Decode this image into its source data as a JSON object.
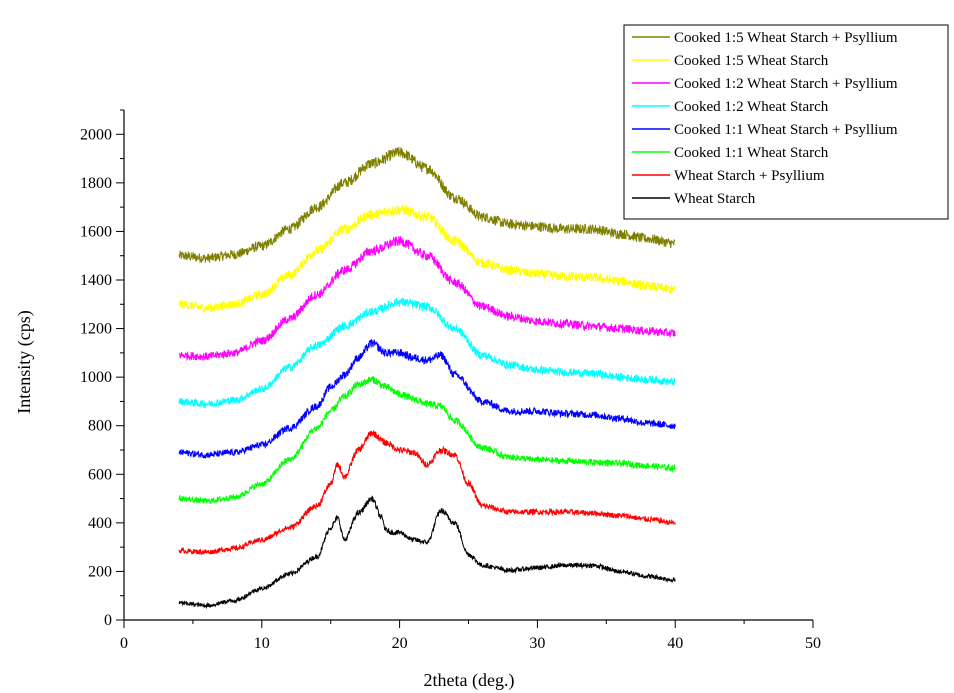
{
  "chart_data": {
    "type": "line",
    "title": "",
    "xlabel": "2theta (deg.)",
    "ylabel": "Intensity (cps)",
    "xlim": [
      0,
      50
    ],
    "ylim": [
      0,
      2100
    ],
    "x_ticks": [
      0,
      10,
      20,
      30,
      40,
      50
    ],
    "y_ticks": [
      0,
      200,
      400,
      600,
      800,
      1000,
      1200,
      1400,
      1600,
      1800,
      2000
    ],
    "grid": false,
    "legend_position": "top-right",
    "series": [
      {
        "name": "Cooked 1:5 Wheat Starch + Psyllium",
        "color": "#808000",
        "x": [
          4,
          6,
          8,
          10,
          12,
          14,
          16,
          18,
          20,
          22,
          24,
          26,
          28,
          30,
          32,
          34,
          36,
          38,
          40
        ],
        "y": [
          1500,
          1490,
          1505,
          1540,
          1610,
          1700,
          1800,
          1880,
          1925,
          1860,
          1740,
          1660,
          1630,
          1620,
          1610,
          1610,
          1590,
          1570,
          1550
        ]
      },
      {
        "name": "Cooked 1:5 Wheat Starch",
        "color": "#ffff00",
        "x": [
          4,
          6,
          8,
          10,
          12,
          14,
          16,
          18,
          20,
          22,
          24,
          26,
          28,
          30,
          32,
          34,
          36,
          38,
          40
        ],
        "y": [
          1300,
          1285,
          1300,
          1340,
          1420,
          1520,
          1610,
          1670,
          1690,
          1660,
          1560,
          1470,
          1440,
          1425,
          1415,
          1410,
          1395,
          1375,
          1360
        ]
      },
      {
        "name": "Cooked 1:2 Wheat Starch + Psyllium",
        "color": "#ff00ff",
        "x": [
          4,
          6,
          8,
          10,
          12,
          14,
          16,
          18,
          20,
          22,
          24,
          26,
          28,
          30,
          32,
          34,
          36,
          38,
          40
        ],
        "y": [
          1090,
          1085,
          1100,
          1150,
          1240,
          1340,
          1440,
          1520,
          1560,
          1500,
          1390,
          1290,
          1250,
          1230,
          1220,
          1210,
          1200,
          1190,
          1180
        ]
      },
      {
        "name": "Cooked 1:2 Wheat Starch",
        "color": "#00ffff",
        "x": [
          4,
          6,
          8,
          10,
          12,
          14,
          16,
          18,
          20,
          22,
          24,
          26,
          28,
          30,
          32,
          34,
          36,
          38,
          40
        ],
        "y": [
          900,
          890,
          905,
          950,
          1040,
          1130,
          1210,
          1270,
          1310,
          1290,
          1200,
          1090,
          1050,
          1030,
          1020,
          1015,
          1000,
          990,
          980
        ]
      },
      {
        "name": "Cooked 1:1 Wheat Starch + Psyllium",
        "color": "#0000ff",
        "x": [
          4,
          6,
          8,
          10,
          12,
          14,
          15,
          16,
          17,
          18,
          19,
          20,
          21,
          22,
          23,
          24,
          26,
          28,
          30,
          32,
          34,
          36,
          38,
          40
        ],
        "y": [
          690,
          680,
          690,
          720,
          790,
          880,
          960,
          1010,
          1080,
          1140,
          1100,
          1100,
          1080,
          1070,
          1090,
          1010,
          900,
          860,
          860,
          850,
          845,
          830,
          810,
          800
        ]
      },
      {
        "name": "Cooked 1:1 Wheat Starch",
        "color": "#00ff00",
        "x": [
          4,
          6,
          8,
          10,
          12,
          14,
          15,
          16,
          17,
          18,
          19,
          20,
          21,
          22,
          23,
          24,
          26,
          28,
          30,
          32,
          34,
          36,
          38,
          40
        ],
        "y": [
          500,
          490,
          505,
          560,
          660,
          790,
          860,
          920,
          970,
          990,
          960,
          930,
          910,
          890,
          880,
          820,
          710,
          670,
          660,
          655,
          650,
          645,
          635,
          625
        ]
      },
      {
        "name": "Wheat Starch + Psyllium",
        "color": "#ff0000",
        "x": [
          4,
          6,
          8,
          10,
          12,
          14,
          15,
          15.5,
          16,
          17,
          18,
          19,
          20,
          21,
          22,
          23,
          24,
          25,
          26,
          28,
          30,
          32,
          34,
          36,
          38,
          40
        ],
        "y": [
          285,
          280,
          295,
          330,
          380,
          470,
          560,
          640,
          590,
          700,
          770,
          730,
          700,
          690,
          640,
          700,
          680,
          560,
          470,
          445,
          445,
          445,
          440,
          430,
          415,
          400
        ]
      },
      {
        "name": "Wheat Starch",
        "color": "#000000",
        "x": [
          4,
          6,
          8,
          10,
          12,
          14,
          15,
          15.5,
          16,
          17,
          18,
          18.7,
          19,
          19.5,
          20,
          21,
          22,
          23,
          24,
          25,
          26,
          28,
          30,
          32,
          34,
          36,
          38,
          40
        ],
        "y": [
          70,
          60,
          80,
          130,
          190,
          260,
          380,
          420,
          330,
          440,
          500,
          420,
          370,
          360,
          360,
          330,
          320,
          450,
          400,
          270,
          225,
          205,
          215,
          225,
          225,
          200,
          180,
          165
        ]
      }
    ]
  }
}
